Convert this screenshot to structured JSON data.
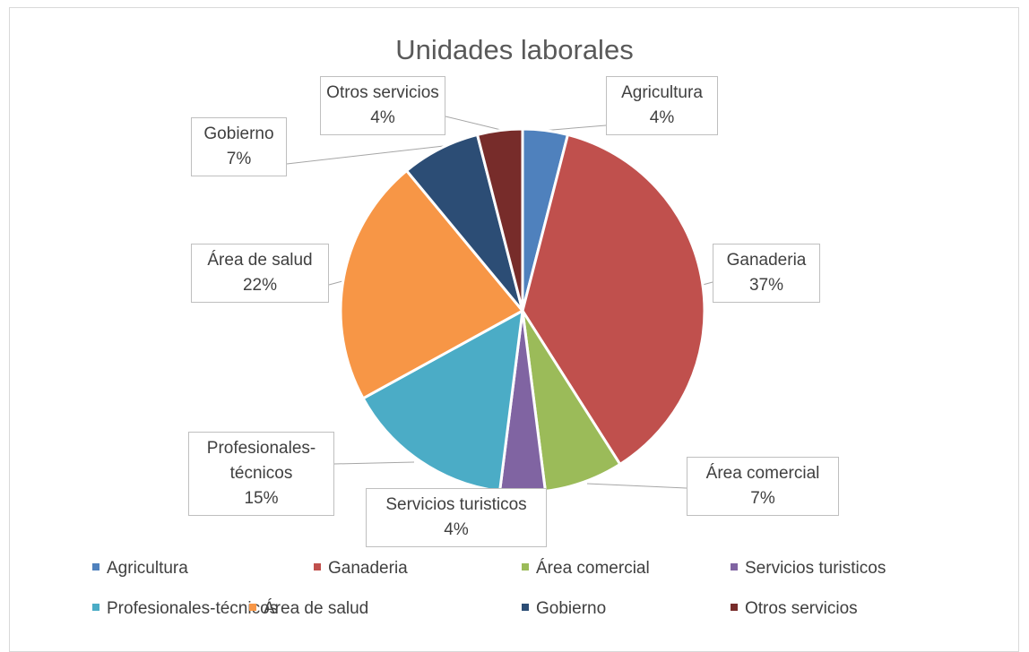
{
  "chart_data": {
    "type": "pie",
    "title": "Unidades laborales",
    "categories": [
      "Agricultura",
      "Ganaderia",
      "Área comercial",
      "Servicios turisticos",
      "Profesionales-técnicos",
      "Área de salud",
      "Gobierno",
      "Otros servicios"
    ],
    "values": [
      4,
      37,
      7,
      4,
      15,
      22,
      7,
      4
    ],
    "value_labels": [
      "4%",
      "37%",
      "7%",
      "4%",
      "15%",
      "22%",
      "7%",
      "4%"
    ],
    "colors": [
      "#4f81bd",
      "#c0504d",
      "#9bbb59",
      "#8064a2",
      "#4bacc6",
      "#f79646",
      "#2c4d75",
      "#772c2a"
    ],
    "legend": "bottom"
  }
}
